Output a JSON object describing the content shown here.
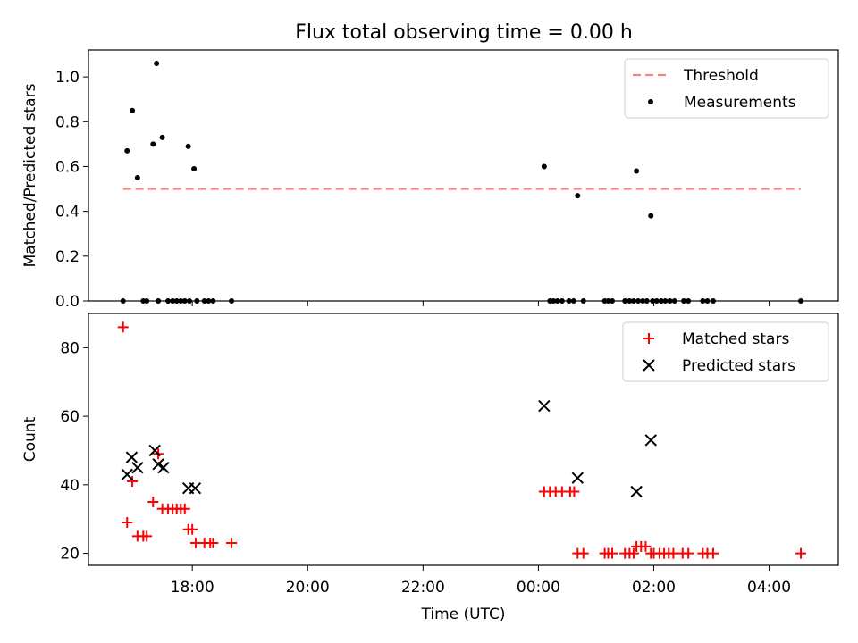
{
  "figure": {
    "title": "Flux total observing time = 0.00 h"
  },
  "chart_data": [
    {
      "type": "scatter",
      "title": "Flux total observing time = 0.00 h",
      "xlabel": "",
      "ylabel": "Matched/Predicted stars",
      "x_unit": "hours since 16:00 UTC",
      "xlim": [
        0.2,
        13.2
      ],
      "ylim": [
        0.0,
        1.12
      ],
      "yticks": [
        0.0,
        0.2,
        0.4,
        0.6,
        0.8,
        1.0
      ],
      "ytick_labels": [
        "0.0",
        "0.2",
        "0.4",
        "0.6",
        "0.8",
        "1.0"
      ],
      "legend": {
        "position": "top-right",
        "entries": [
          "Threshold",
          "Measurements"
        ]
      },
      "threshold": {
        "name": "Threshold",
        "value": 0.5,
        "x_range": [
          0.8,
          12.55
        ],
        "color": "#ff8080",
        "style": "dashed"
      },
      "series": [
        {
          "name": "Measurements",
          "color": "#000000",
          "marker": "dot",
          "points": [
            [
              0.8,
              0.0
            ],
            [
              0.87,
              0.67
            ],
            [
              0.96,
              0.85
            ],
            [
              1.05,
              0.55
            ],
            [
              1.15,
              0.0
            ],
            [
              1.21,
              0.0
            ],
            [
              1.32,
              0.7
            ],
            [
              1.41,
              0.0
            ],
            [
              1.38,
              1.06
            ],
            [
              1.48,
              0.73
            ],
            [
              1.58,
              0.0
            ],
            [
              1.66,
              0.0
            ],
            [
              1.73,
              0.0
            ],
            [
              1.8,
              0.0
            ],
            [
              1.87,
              0.0
            ],
            [
              1.93,
              0.69
            ],
            [
              1.95,
              0.0
            ],
            [
              2.03,
              0.59
            ],
            [
              2.08,
              0.0
            ],
            [
              2.21,
              0.0
            ],
            [
              2.28,
              0.0
            ],
            [
              2.36,
              0.0
            ],
            [
              2.68,
              0.0
            ],
            [
              8.1,
              0.6
            ],
            [
              8.2,
              0.0
            ],
            [
              8.26,
              0.0
            ],
            [
              8.33,
              0.0
            ],
            [
              8.41,
              0.0
            ],
            [
              8.53,
              0.0
            ],
            [
              8.61,
              0.0
            ],
            [
              8.68,
              0.47
            ],
            [
              8.78,
              0.0
            ],
            [
              9.15,
              0.0
            ],
            [
              9.21,
              0.0
            ],
            [
              9.28,
              0.0
            ],
            [
              9.5,
              0.0
            ],
            [
              9.58,
              0.0
            ],
            [
              9.65,
              0.0
            ],
            [
              9.7,
              0.58
            ],
            [
              9.73,
              0.0
            ],
            [
              9.81,
              0.0
            ],
            [
              9.88,
              0.0
            ],
            [
              9.95,
              0.38
            ],
            [
              9.98,
              0.0
            ],
            [
              10.05,
              0.0
            ],
            [
              10.13,
              0.0
            ],
            [
              10.2,
              0.0
            ],
            [
              10.28,
              0.0
            ],
            [
              10.36,
              0.0
            ],
            [
              10.52,
              0.0
            ],
            [
              10.6,
              0.0
            ],
            [
              10.85,
              0.0
            ],
            [
              10.93,
              0.0
            ],
            [
              11.03,
              0.0
            ],
            [
              12.55,
              0.0
            ]
          ]
        }
      ]
    },
    {
      "type": "scatter",
      "title": "",
      "xlabel": "Time (UTC)",
      "ylabel": "Count",
      "x_unit": "hours since 16:00 UTC",
      "xlim": [
        0.2,
        13.2
      ],
      "ylim": [
        16.5,
        90.0
      ],
      "yticks": [
        20,
        40,
        60,
        80
      ],
      "ytick_labels": [
        "20",
        "40",
        "60",
        "80"
      ],
      "xticks": [
        2,
        4,
        6,
        8,
        10,
        12
      ],
      "xtick_labels": [
        "18:00",
        "20:00",
        "22:00",
        "00:00",
        "02:00",
        "04:00"
      ],
      "legend": {
        "position": "top-right",
        "entries": [
          "Matched stars",
          "Predicted stars"
        ]
      },
      "series": [
        {
          "name": "Matched stars",
          "color": "#ff0000",
          "marker": "plus",
          "points": [
            [
              0.8,
              86
            ],
            [
              0.87,
              29
            ],
            [
              0.96,
              41
            ],
            [
              1.05,
              25
            ],
            [
              1.15,
              25
            ],
            [
              1.21,
              25
            ],
            [
              1.32,
              35
            ],
            [
              1.41,
              49
            ],
            [
              1.48,
              33
            ],
            [
              1.58,
              33
            ],
            [
              1.66,
              33
            ],
            [
              1.73,
              33
            ],
            [
              1.8,
              33
            ],
            [
              1.87,
              33
            ],
            [
              1.93,
              27
            ],
            [
              2.0,
              27
            ],
            [
              2.06,
              23
            ],
            [
              2.21,
              23
            ],
            [
              2.31,
              23
            ],
            [
              2.36,
              23
            ],
            [
              2.68,
              23
            ],
            [
              8.1,
              38
            ],
            [
              8.2,
              38
            ],
            [
              8.3,
              38
            ],
            [
              8.41,
              38
            ],
            [
              8.55,
              38
            ],
            [
              8.62,
              38
            ],
            [
              8.68,
              20
            ],
            [
              8.78,
              20
            ],
            [
              9.15,
              20
            ],
            [
              9.21,
              20
            ],
            [
              9.28,
              20
            ],
            [
              9.5,
              20
            ],
            [
              9.58,
              20
            ],
            [
              9.65,
              20
            ],
            [
              9.7,
              22
            ],
            [
              9.78,
              22
            ],
            [
              9.86,
              22
            ],
            [
              9.95,
              20
            ],
            [
              10.0,
              20
            ],
            [
              10.1,
              20
            ],
            [
              10.18,
              20
            ],
            [
              10.26,
              20
            ],
            [
              10.34,
              20
            ],
            [
              10.5,
              20
            ],
            [
              10.6,
              20
            ],
            [
              10.85,
              20
            ],
            [
              10.93,
              20
            ],
            [
              11.03,
              20
            ],
            [
              12.55,
              20
            ]
          ]
        },
        {
          "name": "Predicted stars",
          "color": "#000000",
          "marker": "x",
          "points": [
            [
              0.87,
              43
            ],
            [
              0.95,
              48
            ],
            [
              1.05,
              45
            ],
            [
              1.35,
              50
            ],
            [
              1.41,
              46
            ],
            [
              1.5,
              45
            ],
            [
              1.93,
              39
            ],
            [
              2.05,
              39
            ],
            [
              8.1,
              63
            ],
            [
              8.68,
              42
            ],
            [
              9.7,
              38
            ],
            [
              9.95,
              53
            ]
          ]
        }
      ]
    }
  ]
}
